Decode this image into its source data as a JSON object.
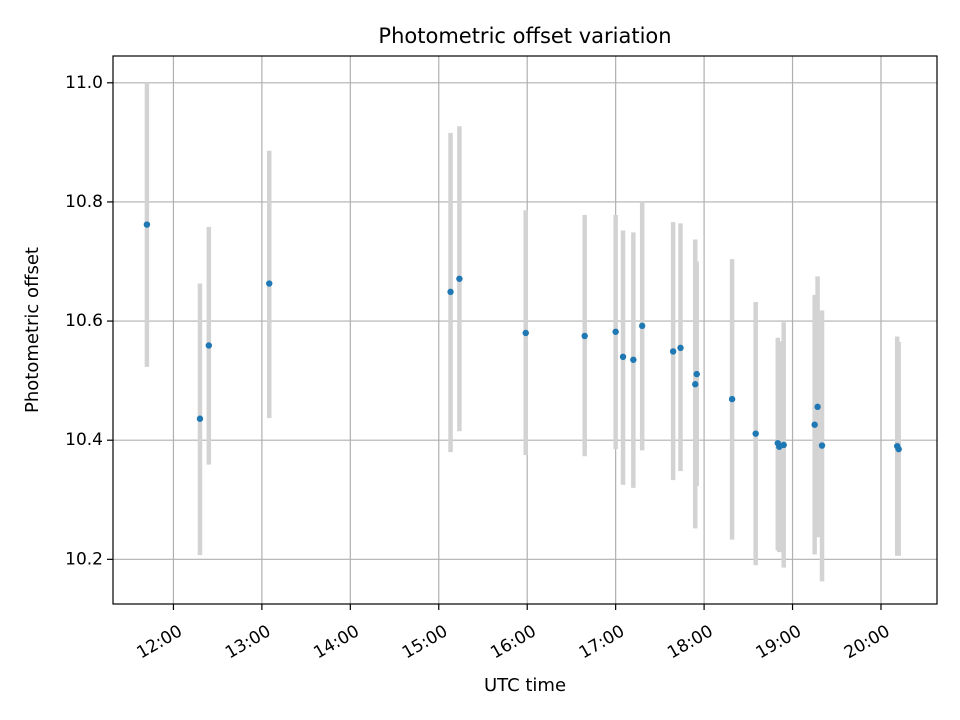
{
  "chart_data": {
    "type": "scatter",
    "title": "Photometric offset variation",
    "xlabel": "UTC time",
    "ylabel": "Photometric offset",
    "x_ticks": [
      "12:00",
      "13:00",
      "14:00",
      "15:00",
      "16:00",
      "17:00",
      "18:00",
      "19:00",
      "20:00"
    ],
    "y_ticks": [
      "10.2",
      "10.4",
      "10.6",
      "10.8",
      "11.0"
    ],
    "xlim": [
      "11:19",
      "20:38"
    ],
    "ylim": [
      10.125,
      11.045
    ],
    "grid": true,
    "colors": {
      "point": "#1f77b4",
      "errorbar": "#d3d3d3",
      "grid": "#b0b0b0"
    },
    "points": [
      {
        "x": "11:42",
        "y": 10.762,
        "ylo": 10.523,
        "yhi": 11.0
      },
      {
        "x": "12:18",
        "y": 10.436,
        "ylo": 10.207,
        "yhi": 10.663
      },
      {
        "x": "12:24",
        "y": 10.559,
        "ylo": 10.359,
        "yhi": 10.758
      },
      {
        "x": "13:05",
        "y": 10.663,
        "ylo": 10.437,
        "yhi": 10.886
      },
      {
        "x": "15:08",
        "y": 10.649,
        "ylo": 10.38,
        "yhi": 10.916
      },
      {
        "x": "15:14",
        "y": 10.671,
        "ylo": 10.415,
        "yhi": 10.927
      },
      {
        "x": "15:59",
        "y": 10.58,
        "ylo": 10.375,
        "yhi": 10.786
      },
      {
        "x": "16:39",
        "y": 10.575,
        "ylo": 10.373,
        "yhi": 10.778
      },
      {
        "x": "17:00",
        "y": 10.582,
        "ylo": 10.385,
        "yhi": 10.778
      },
      {
        "x": "17:05",
        "y": 10.54,
        "ylo": 10.325,
        "yhi": 10.752
      },
      {
        "x": "17:12",
        "y": 10.535,
        "ylo": 10.32,
        "yhi": 10.749
      },
      {
        "x": "17:18",
        "y": 10.592,
        "ylo": 10.383,
        "yhi": 10.8
      },
      {
        "x": "17:39",
        "y": 10.549,
        "ylo": 10.333,
        "yhi": 10.766
      },
      {
        "x": "17:44",
        "y": 10.555,
        "ylo": 10.348,
        "yhi": 10.764
      },
      {
        "x": "17:54",
        "y": 10.494,
        "ylo": 10.252,
        "yhi": 10.737
      },
      {
        "x": "17:55",
        "y": 10.511,
        "ylo": 10.323,
        "yhi": 10.7
      },
      {
        "x": "18:19",
        "y": 10.469,
        "ylo": 10.233,
        "yhi": 10.704
      },
      {
        "x": "18:35",
        "y": 10.411,
        "ylo": 10.19,
        "yhi": 10.632
      },
      {
        "x": "18:50",
        "y": 10.395,
        "ylo": 10.215,
        "yhi": 10.572
      },
      {
        "x": "18:51",
        "y": 10.389,
        "ylo": 10.212,
        "yhi": 10.566
      },
      {
        "x": "18:54",
        "y": 10.392,
        "ylo": 10.186,
        "yhi": 10.598
      },
      {
        "x": "19:15",
        "y": 10.426,
        "ylo": 10.208,
        "yhi": 10.644
      },
      {
        "x": "19:17",
        "y": 10.456,
        "ylo": 10.237,
        "yhi": 10.675
      },
      {
        "x": "19:20",
        "y": 10.391,
        "ylo": 10.163,
        "yhi": 10.618
      },
      {
        "x": "20:11",
        "y": 10.39,
        "ylo": 10.206,
        "yhi": 10.574
      },
      {
        "x": "20:12",
        "y": 10.385,
        "ylo": 10.206,
        "yhi": 10.565
      }
    ]
  }
}
